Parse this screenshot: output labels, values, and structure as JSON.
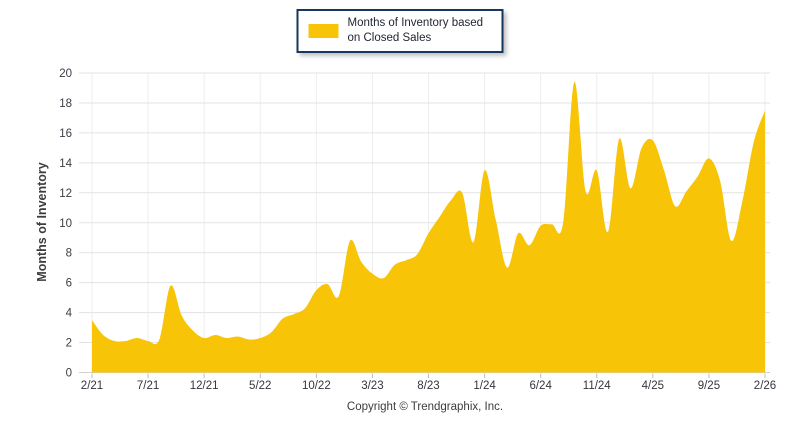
{
  "legend": {
    "label": "Months of Inventory based on Closed Sales"
  },
  "footer": {
    "copyright": "Copyright © Trendgraphix, Inc."
  },
  "chart_data": {
    "type": "area",
    "title": "",
    "xlabel": "",
    "ylabel": "Months of Inventory",
    "ylim": [
      0,
      20
    ],
    "y_ticks": [
      0,
      2,
      4,
      6,
      8,
      10,
      12,
      14,
      16,
      18,
      20
    ],
    "grid": true,
    "legend_position": "top-center",
    "series_color": "#F7C408",
    "x": [
      "2/21",
      "3/21",
      "4/21",
      "5/21",
      "6/21",
      "7/21",
      "8/21",
      "9/21",
      "10/21",
      "11/21",
      "12/21",
      "1/22",
      "2/22",
      "3/22",
      "4/22",
      "5/22",
      "6/22",
      "7/22",
      "8/22",
      "9/22",
      "10/22",
      "11/22",
      "12/22",
      "1/23",
      "2/23",
      "3/23",
      "4/23",
      "5/23",
      "6/23",
      "7/23",
      "8/23",
      "9/23",
      "10/23",
      "11/23",
      "12/23",
      "1/24",
      "2/24",
      "3/24",
      "4/24",
      "5/24",
      "6/24",
      "7/24",
      "8/24",
      "9/24",
      "10/24",
      "11/24",
      "12/24",
      "1/25",
      "2/25",
      "3/25",
      "4/25",
      "5/25",
      "6/25",
      "7/25",
      "8/25",
      "9/25",
      "10/25",
      "11/25",
      "12/25",
      "1/26",
      "2/26"
    ],
    "x_tick_labels": [
      "2/21",
      "7/21",
      "12/21",
      "5/22",
      "10/22",
      "3/23",
      "8/23",
      "1/24",
      "6/24",
      "11/24",
      "4/25",
      "9/25",
      "2/26"
    ],
    "x_tick_every": 5,
    "series": [
      {
        "name": "Months of Inventory based on Closed Sales",
        "values": [
          3.5,
          2.5,
          2.1,
          2.1,
          2.3,
          2.1,
          2.2,
          5.8,
          3.8,
          2.8,
          2.3,
          2.5,
          2.3,
          2.4,
          2.2,
          2.3,
          2.7,
          3.6,
          3.9,
          4.3,
          5.5,
          5.9,
          5.1,
          8.8,
          7.4,
          6.6,
          6.3,
          7.2,
          7.5,
          7.9,
          9.3,
          10.4,
          11.5,
          12.0,
          8.7,
          13.5,
          10.2,
          7.0,
          9.3,
          8.5,
          9.8,
          9.9,
          10.0,
          19.4,
          12.1,
          13.5,
          9.4,
          15.6,
          12.3,
          15.0,
          15.5,
          13.5,
          11.1,
          12.1,
          13.1,
          14.3,
          12.8,
          8.8,
          11.5,
          15.4,
          17.5
        ]
      }
    ]
  }
}
